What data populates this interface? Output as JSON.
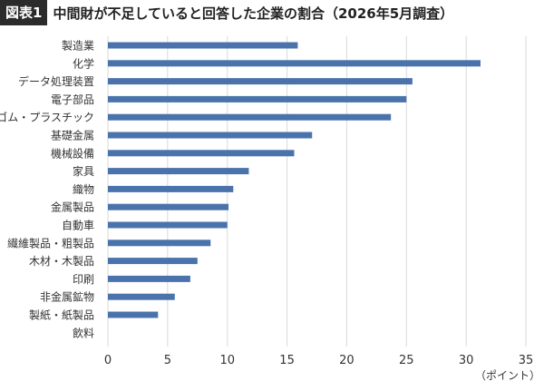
{
  "header": {
    "tag": "図表1",
    "title": "中間財が不足していると回答した企業の割合（2026年5月調査）"
  },
  "chart_data": {
    "type": "bar",
    "orientation": "horizontal",
    "title": "中間財が不足していると回答した企業の割合（2026年5月調査）",
    "categories": [
      "製造業",
      "化学",
      "データ処理装置",
      "電子部品",
      "ゴム・プラスチック",
      "基礎金属",
      "機械設備",
      "家具",
      "織物",
      "金属製品",
      "自動車",
      "繊維製品・粗製品",
      "木材・木製品",
      "印刷",
      "非金属鉱物",
      "製紙・紙製品",
      "飲料"
    ],
    "values": [
      15.9,
      31.2,
      25.5,
      25.0,
      23.7,
      17.1,
      15.6,
      11.8,
      10.5,
      10.1,
      10.0,
      8.6,
      7.5,
      6.9,
      5.6,
      4.2,
      0
    ],
    "xlim": [
      0,
      35
    ],
    "xticks": [
      "0",
      "5",
      "10",
      "15",
      "20",
      "25",
      "30",
      "35"
    ],
    "xlabel": "（ポイント）",
    "ylabel": "",
    "grid": "vertical",
    "bar_color": "#4a73ac",
    "grid_color": "#d9d9d9"
  }
}
